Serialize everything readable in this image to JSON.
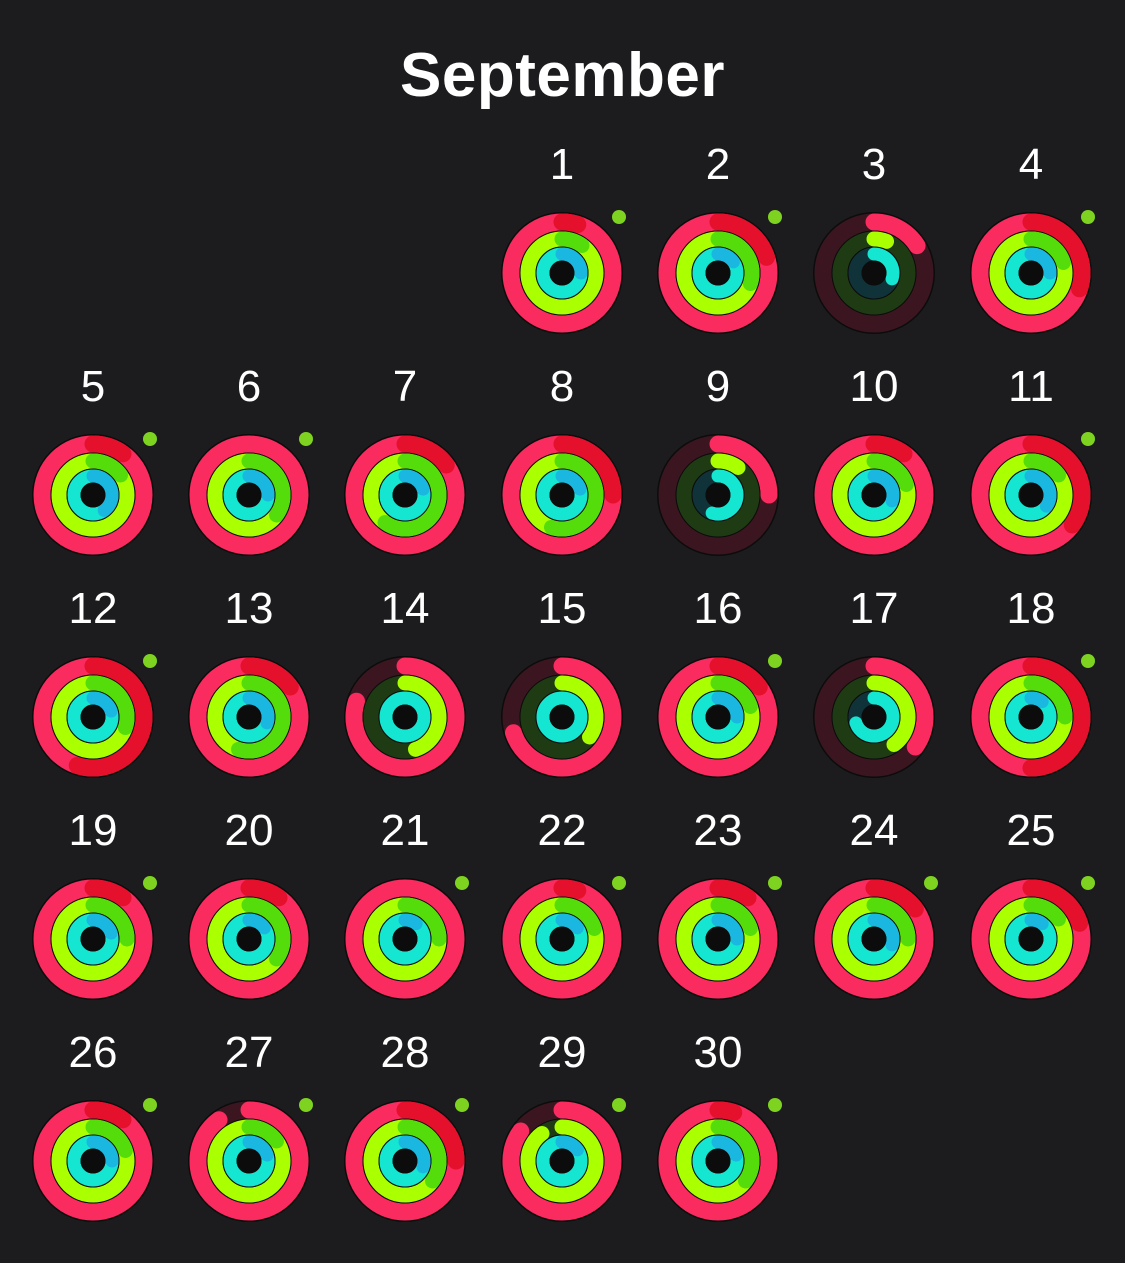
{
  "header": {
    "month": "September"
  },
  "calendar": {
    "first_weekday_index": 3,
    "colors": {
      "move": "#f92b5f",
      "move_end": "#e5102c",
      "move_track": "#3b1620",
      "exercise": "#aaff00",
      "exercise_end": "#54dd0a",
      "exercise_track": "#1f3b14",
      "stand": "#14e6d2",
      "stand_end": "#1ab8e0",
      "stand_track": "#10333a",
      "badge": "#7ed321"
    },
    "days": [
      {
        "day": "1",
        "move": 1.05,
        "exercise": 1.1,
        "stand": 1.25,
        "badge": true
      },
      {
        "day": "2",
        "move": 1.2,
        "exercise": 1.3,
        "stand": 1.15,
        "badge": true
      },
      {
        "day": "3",
        "move": 0.16,
        "exercise": 0.06,
        "stand": 0.3,
        "badge": false
      },
      {
        "day": "4",
        "move": 1.3,
        "exercise": 1.2,
        "stand": 1.25,
        "badge": true
      },
      {
        "day": "5",
        "move": 1.1,
        "exercise": 1.15,
        "stand": 1.4,
        "badge": true
      },
      {
        "day": "6",
        "move": 1.0,
        "exercise": 1.35,
        "stand": 1.25,
        "badge": true
      },
      {
        "day": "7",
        "move": 1.15,
        "exercise": 1.6,
        "stand": 1.2,
        "badge": false
      },
      {
        "day": "8",
        "move": 1.25,
        "exercise": 1.55,
        "stand": 1.2,
        "badge": false
      },
      {
        "day": "9",
        "move": 0.25,
        "exercise": 0.1,
        "stand": 0.55,
        "badge": false
      },
      {
        "day": "10",
        "move": 1.1,
        "exercise": 1.2,
        "stand": 1.3,
        "badge": false
      },
      {
        "day": "11",
        "move": 1.35,
        "exercise": 1.15,
        "stand": 1.35,
        "badge": true
      },
      {
        "day": "12",
        "move": 1.55,
        "exercise": 1.3,
        "stand": 1.2,
        "badge": true
      },
      {
        "day": "13",
        "move": 1.15,
        "exercise": 1.55,
        "stand": 1.3,
        "badge": false
      },
      {
        "day": "14",
        "move": 0.8,
        "exercise": 0.45,
        "stand": 1.0,
        "badge": false
      },
      {
        "day": "15",
        "move": 0.7,
        "exercise": 0.35,
        "stand": 1.0,
        "badge": false
      },
      {
        "day": "16",
        "move": 1.15,
        "exercise": 1.2,
        "stand": 1.25,
        "badge": true
      },
      {
        "day": "17",
        "move": 0.35,
        "exercise": 0.4,
        "stand": 0.7,
        "badge": false
      },
      {
        "day": "18",
        "move": 1.5,
        "exercise": 1.25,
        "stand": 1.1,
        "badge": true
      },
      {
        "day": "19",
        "move": 1.1,
        "exercise": 1.25,
        "stand": 1.2,
        "badge": true
      },
      {
        "day": "20",
        "move": 1.1,
        "exercise": 1.35,
        "stand": 1.15,
        "badge": false
      },
      {
        "day": "21",
        "move": 1.0,
        "exercise": 1.25,
        "stand": 1.1,
        "badge": true
      },
      {
        "day": "22",
        "move": 1.05,
        "exercise": 1.2,
        "stand": 1.15,
        "badge": true
      },
      {
        "day": "23",
        "move": 1.1,
        "exercise": 1.2,
        "stand": 1.25,
        "badge": true
      },
      {
        "day": "24",
        "move": 1.15,
        "exercise": 1.25,
        "stand": 1.3,
        "badge": true
      },
      {
        "day": "25",
        "move": 1.2,
        "exercise": 1.15,
        "stand": 1.1,
        "badge": true
      },
      {
        "day": "26",
        "move": 1.1,
        "exercise": 1.2,
        "stand": 1.25,
        "badge": true
      },
      {
        "day": "27",
        "move": 0.9,
        "exercise": 1.15,
        "stand": 1.2,
        "badge": true
      },
      {
        "day": "28",
        "move": 1.25,
        "exercise": 1.35,
        "stand": 1.3,
        "badge": true
      },
      {
        "day": "29",
        "move": 0.85,
        "exercise": 0.9,
        "stand": 1.15,
        "badge": true
      },
      {
        "day": "30",
        "move": 1.05,
        "exercise": 1.35,
        "stand": 1.2,
        "badge": true
      }
    ]
  }
}
